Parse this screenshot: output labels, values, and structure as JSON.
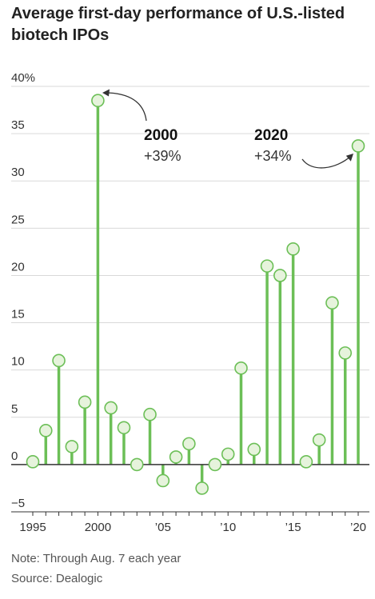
{
  "chart_data": {
    "type": "line",
    "title": "Average first-day performance of U.S.-listed biotech IPOs",
    "xlabel": "",
    "ylabel": "",
    "x": [
      1995,
      1996,
      1997,
      1998,
      1999,
      2000,
      2001,
      2002,
      2003,
      2004,
      2005,
      2006,
      2007,
      2008,
      2009,
      2010,
      2011,
      2012,
      2013,
      2014,
      2015,
      2016,
      2017,
      2018,
      2019,
      2020
    ],
    "series": [
      {
        "values": [
          0.3,
          3.6,
          11.0,
          1.9,
          6.6,
          38.5,
          6.0,
          3.9,
          0.0,
          5.3,
          -1.7,
          0.8,
          2.2,
          -2.5,
          0.0,
          1.1,
          10.2,
          1.6,
          21.0,
          20.0,
          22.8,
          0.3,
          2.6,
          17.1,
          11.8,
          33.7
        ]
      }
    ],
    "ylim": [
      -5,
      40
    ],
    "y_ticks": [
      -5,
      0,
      5,
      10,
      15,
      20,
      25,
      30,
      35,
      40
    ],
    "y_tick_labels": [
      "−5",
      "0",
      "5",
      "10",
      "15",
      "20",
      "25",
      "30",
      "35",
      "40%"
    ],
    "x_ticks": [
      1995,
      2000,
      2005,
      2010,
      2015,
      2020
    ],
    "x_tick_labels": [
      "1995",
      "2000",
      "’05",
      "’10",
      "’15",
      "’20"
    ],
    "grid": true,
    "annotations": [
      {
        "year_label": "2000",
        "value_label": "+39%",
        "x": 2000
      },
      {
        "year_label": "2020",
        "value_label": "+34%",
        "x": 2020
      }
    ],
    "colors": {
      "stem": "#6cbf57",
      "marker_fill": "#e6f3dc",
      "marker_stroke": "#6cbf57",
      "grid": "#d9d9d9",
      "zero_line": "#333333"
    }
  },
  "notes": {
    "note": "Note: Through Aug. 7 each year",
    "source": "Source: Dealogic"
  }
}
